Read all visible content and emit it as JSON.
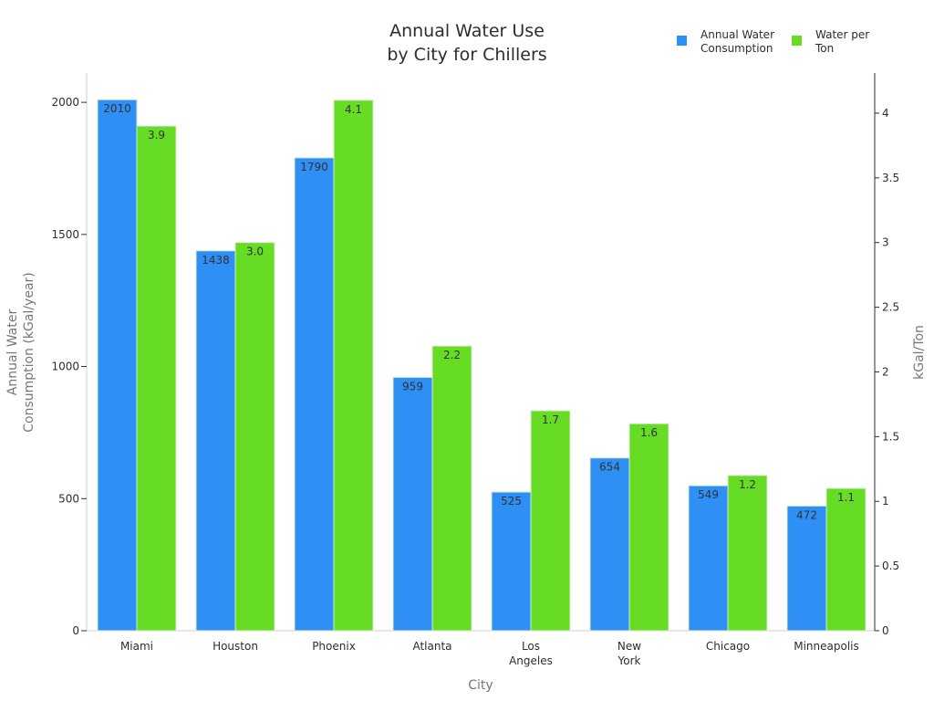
{
  "chart_data": {
    "type": "bar",
    "title_lines": [
      "Annual Water Use",
      "by City for Chillers"
    ],
    "xlabel": "City",
    "ylabel_lines": [
      "Annual Water",
      "Consumption (kGal/year)"
    ],
    "y2label": "kGal/Ton",
    "categories": [
      [
        "Miami"
      ],
      [
        "Houston"
      ],
      [
        "Phoenix"
      ],
      [
        "Atlanta"
      ],
      [
        "Los",
        "Angeles"
      ],
      [
        "New",
        "York"
      ],
      [
        "Chicago"
      ],
      [
        "Minneapolis"
      ]
    ],
    "series": [
      {
        "name_lines": [
          "Annual Water",
          "Consumption"
        ],
        "axis": "left",
        "color": "#2e8ff5",
        "values": [
          2010,
          1438,
          1790,
          959,
          525,
          654,
          549,
          472
        ],
        "labels": [
          "2010",
          "1438",
          "1790",
          "959",
          "525",
          "654",
          "549",
          "472"
        ]
      },
      {
        "name_lines": [
          "Water per",
          "Ton"
        ],
        "axis": "right",
        "color": "#66dc24",
        "values": [
          3.9,
          3.0,
          4.1,
          2.2,
          1.7,
          1.6,
          1.2,
          1.1
        ],
        "labels": [
          "3.9",
          "3.0",
          "4.1",
          "2.2",
          "1.7",
          "1.6",
          "1.2",
          "1.1"
        ]
      }
    ],
    "ylim": [
      0,
      2111
    ],
    "yticks": [
      0,
      500,
      1000,
      1500,
      2000
    ],
    "y2lim": [
      0,
      4.31
    ],
    "y2ticks": [
      0,
      0.5,
      1,
      1.5,
      2,
      2.5,
      3,
      3.5,
      4
    ],
    "y2ticklabels": [
      "0",
      "0.5",
      "1",
      "1.5",
      "2",
      "2.5",
      "3",
      "3.5",
      "4"
    ],
    "legend_position": "top-right",
    "grid": false
  }
}
